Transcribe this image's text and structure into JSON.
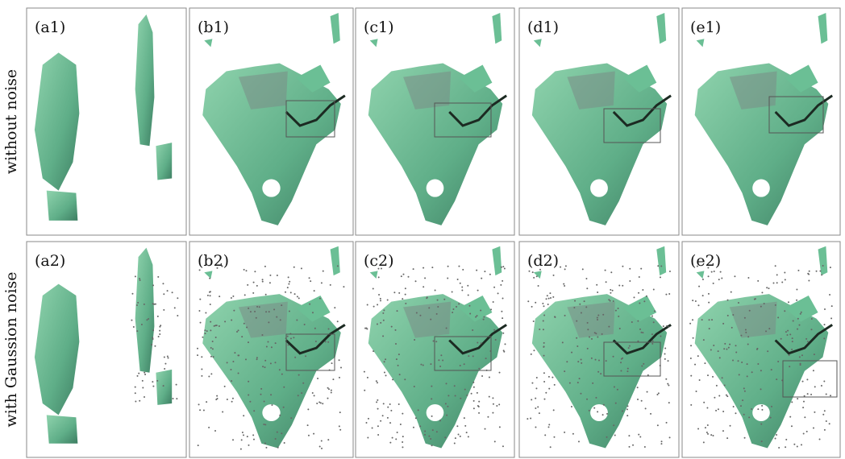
{
  "row_labels": [
    "without noise",
    "with Gaussion noise"
  ],
  "panels": [
    [
      "(a1)",
      "(b1)",
      "(c1)",
      "(d1)",
      "(e1)"
    ],
    [
      "(a2)",
      "(b2)",
      "(c2)",
      "(d2)",
      "(e2)"
    ]
  ]
}
